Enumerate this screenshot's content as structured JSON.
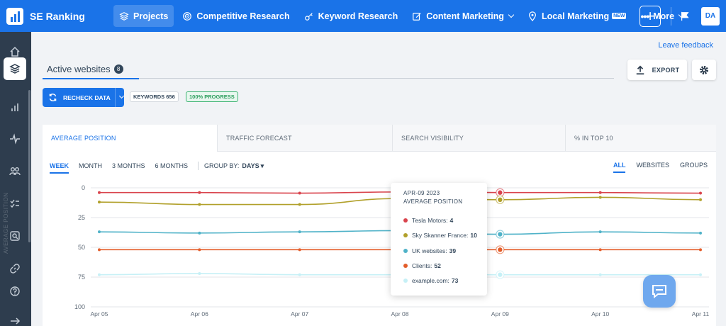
{
  "brand": {
    "name": "SE Ranking"
  },
  "nav": {
    "items": [
      {
        "label": "Projects",
        "icon": "layers-icon"
      },
      {
        "label": "Competitive Research",
        "icon": "target-icon"
      },
      {
        "label": "Keyword Research",
        "icon": "key-icon"
      },
      {
        "label": "Content Marketing",
        "icon": "edit-icon"
      },
      {
        "label": "Local Marketing",
        "icon": "pin-icon",
        "badge": "NEW"
      },
      {
        "label": "More",
        "icon": "dots-icon"
      }
    ],
    "avatar": "DA"
  },
  "page": {
    "leave_feedback": "Leave feedback",
    "tab_label": "Active websites",
    "tab_count": "8",
    "export_label": "EXPORT",
    "recheck_label": "RECHECK DATA",
    "keywords_badge": "KEYWORDS 656",
    "progress_badge": "100% PROGRESS"
  },
  "metrics": {
    "tabs": [
      "AVERAGE POSITION",
      "TRAFFIC FORECAST",
      "SEARCH VISIBILITY",
      "% IN TOP 10"
    ],
    "periods": [
      "WEEK",
      "MONTH",
      "3 MONTHS",
      "6 MONTHS"
    ],
    "group_by_label": "GROUP BY:",
    "group_by_value": "DAYS",
    "views": [
      "ALL",
      "WEBSITES",
      "GROUPS"
    ]
  },
  "tooltip": {
    "date": "APR-09 2023",
    "label": "AVERAGE POSITION",
    "rows": [
      {
        "name": "Tesla Motors:",
        "value": "4"
      },
      {
        "name": "Sky Skanner France:",
        "value": "10"
      },
      {
        "name": "UK websites:",
        "value": "39"
      },
      {
        "name": "Clients:",
        "value": "52"
      },
      {
        "name": "example.com:",
        "value": "73"
      }
    ]
  },
  "colors": {
    "accent": "#1a73e8",
    "tesla": "#d9434c",
    "sky": "#b1a02a",
    "uk": "#4fb2c8",
    "clients": "#e35d2a",
    "example": "#c6f0f6"
  },
  "chart_data": {
    "type": "line",
    "ylabel": "AVERAGE POSITION",
    "ylim": [
      100,
      0
    ],
    "y_ticks": [
      "0",
      "25",
      "50",
      "75",
      "100"
    ],
    "categories": [
      "Apr 05",
      "Apr 06",
      "Apr 07",
      "Apr 08",
      "Apr 09",
      "Apr 10",
      "Apr 11"
    ],
    "series": [
      {
        "name": "Tesla Motors",
        "color": "#d9434c",
        "values": [
          4,
          4,
          4.5,
          3.5,
          4,
          4,
          4.5
        ]
      },
      {
        "name": "Sky Skanner France",
        "color": "#b1a02a",
        "values": [
          12,
          14,
          14,
          9,
          10,
          8,
          10
        ]
      },
      {
        "name": "UK websites",
        "color": "#4fb2c8",
        "values": [
          37,
          38,
          37,
          36,
          39,
          37,
          38
        ]
      },
      {
        "name": "Clients",
        "color": "#e35d2a",
        "values": [
          52,
          52,
          52,
          52,
          52,
          52,
          52
        ]
      },
      {
        "name": "example.com",
        "color": "#c6f0f6",
        "values": [
          73,
          72,
          73,
          73,
          73,
          73,
          73
        ]
      }
    ],
    "highlight_index": 4
  }
}
